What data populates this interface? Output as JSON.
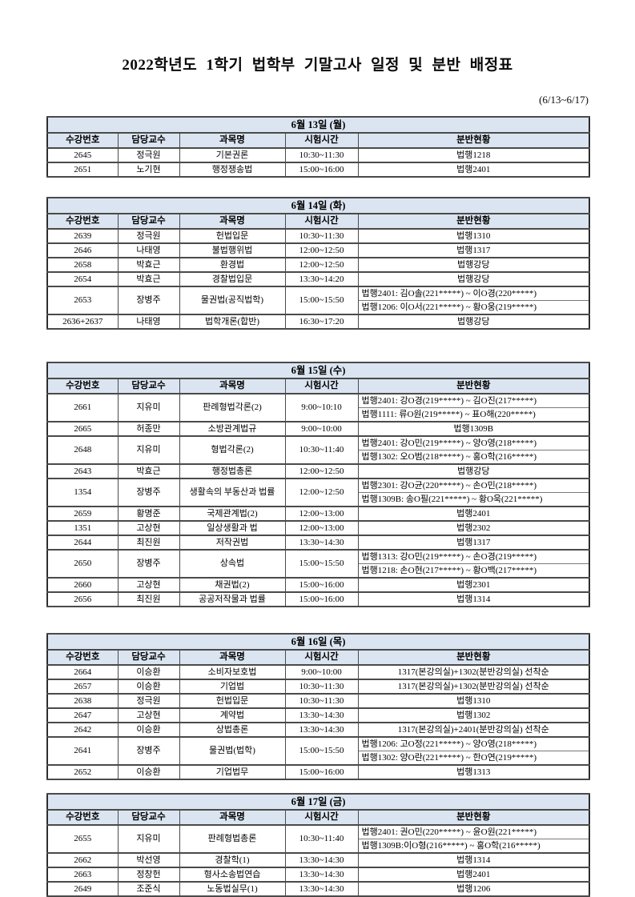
{
  "page": {
    "title": "2022학년도 1학기 법학부 기말고사 일정 및 분반 배정표",
    "date_range": "(6/13~6/17)"
  },
  "colors": {
    "header_bg": "#dbe5f1",
    "border": "#2e2e2e",
    "text": "#000000"
  },
  "columns": [
    "수강번호",
    "담당교수",
    "과목명",
    "시험시간",
    "분반현황"
  ],
  "tables": [
    {
      "day": "6월 13일 (월)",
      "rows": [
        {
          "no": "2645",
          "prof": "정극원",
          "subject": "기본권론",
          "time": "10:30~11:30",
          "sections": [
            "법행1218"
          ]
        },
        {
          "no": "2651",
          "prof": "노기현",
          "subject": "행정쟁송법",
          "time": "15:00~16:00",
          "sections": [
            "법행2401"
          ]
        }
      ]
    },
    {
      "day": "6월 14일 (화)",
      "rows": [
        {
          "no": "2639",
          "prof": "정극원",
          "subject": "헌법입문",
          "time": "10:30~11:30",
          "sections": [
            "법행1310"
          ]
        },
        {
          "no": "2646",
          "prof": "나태영",
          "subject": "불법행위법",
          "time": "12:00~12:50",
          "sections": [
            "법행1317"
          ]
        },
        {
          "no": "2658",
          "prof": "박효근",
          "subject": "환경법",
          "time": "12:00~12:50",
          "sections": [
            "법행강당"
          ]
        },
        {
          "no": "2654",
          "prof": "박효근",
          "subject": "경찰법입문",
          "time": "13:30~14:20",
          "sections": [
            "법행강당"
          ]
        },
        {
          "no": "2653",
          "prof": "장병주",
          "subject": "물권법(공직법학)",
          "time": "15:00~15:50",
          "sections": [
            "법행2401: 김O솔(221*****) ~ 이O경(220*****)",
            "법행1206: 이O서(221*****) ~ 황O웅(219*****)"
          ]
        },
        {
          "no": "2636+2637",
          "prof": "나태영",
          "subject": "법학개론(합반)",
          "time": "16:30~17:20",
          "sections": [
            "법행강당"
          ]
        }
      ]
    },
    {
      "day": "6월 15일 (수)",
      "rows": [
        {
          "no": "2661",
          "prof": "지유미",
          "subject": "판례형법각론(2)",
          "time": "9:00~10:10",
          "sections": [
            "법행2401: 강O경(219*****) ~ 김O진(217*****)",
            "법행1111: 류O원(219*****) ~ 표O해(220*****)"
          ]
        },
        {
          "no": "2665",
          "prof": "허종만",
          "subject": "소방관계법규",
          "time": "9:00~10:00",
          "sections": [
            "법행1309B"
          ]
        },
        {
          "no": "2648",
          "prof": "지유미",
          "subject": "형법각론(2)",
          "time": "10:30~11:40",
          "sections": [
            "법행2401: 강O민(219*****) ~ 양O영(218*****)",
            "법행1302: 오O범(218*****) ~ 홍O학(216*****)"
          ]
        },
        {
          "no": "2643",
          "prof": "박효근",
          "subject": "행정법총론",
          "time": "12:00~12:50",
          "sections": [
            "법행강당"
          ]
        },
        {
          "no": "1354",
          "prof": "장병주",
          "subject": "생활속의 부동산과 법률",
          "time": "12:00~12:50",
          "sections": [
            "법행2301: 강O균(220*****) ~ 손O민(218*****)",
            "법행1309B: 송O필(221*****) ~ 황O욱(221*****)"
          ]
        },
        {
          "no": "2659",
          "prof": "황명준",
          "subject": "국제관계법(2)",
          "time": "12:00~13:00",
          "sections": [
            "법행2401"
          ]
        },
        {
          "no": "1351",
          "prof": "고상현",
          "subject": "일상생활과 법",
          "time": "12:00~13:00",
          "sections": [
            "법행2302"
          ]
        },
        {
          "no": "2644",
          "prof": "최진원",
          "subject": "저작권법",
          "time": "13:30~14:30",
          "sections": [
            "법행1317"
          ]
        },
        {
          "no": "2650",
          "prof": "장병주",
          "subject": "상속법",
          "time": "15:00~15:50",
          "sections": [
            "법행1313: 강O민(219*****) ~ 손O경(219*****)",
            "법행1218: 손O현(217*****) ~ 황O백(217*****)"
          ]
        },
        {
          "no": "2660",
          "prof": "고상현",
          "subject": "채권법(2)",
          "time": "15:00~16:00",
          "sections": [
            "법행2301"
          ]
        },
        {
          "no": "2656",
          "prof": "최진원",
          "subject": "공공저작물과 법률",
          "time": "15:00~16:00",
          "sections": [
            "법행1314"
          ]
        }
      ]
    },
    {
      "day": "6월 16일 (목)",
      "rows": [
        {
          "no": "2664",
          "prof": "이승환",
          "subject": "소비자보호법",
          "time": "9:00~10:00",
          "sections": [
            "1317(본강의실)+1302(분반강의실) 선착순"
          ]
        },
        {
          "no": "2657",
          "prof": "이승환",
          "subject": "기업법",
          "time": "10:30~11:30",
          "sections": [
            "1317(본강의실)+1302(분반강의실) 선착순"
          ]
        },
        {
          "no": "2638",
          "prof": "정극원",
          "subject": "헌법입문",
          "time": "10:30~11:30",
          "sections": [
            "법행1310"
          ]
        },
        {
          "no": "2647",
          "prof": "고상현",
          "subject": "계약법",
          "time": "13:30~14:30",
          "sections": [
            "법행1302"
          ]
        },
        {
          "no": "2642",
          "prof": "이승환",
          "subject": "상법총론",
          "time": "13:30~14:30",
          "sections": [
            "1317(본강의실)+2401(분반강의실) 선착순"
          ]
        },
        {
          "no": "2641",
          "prof": "장병주",
          "subject": "물권법(법학)",
          "time": "15:00~15:50",
          "sections": [
            "법행1206: 고O정(221*****) ~ 양O영(218*****)",
            "법행1302: 양O란(221*****) ~ 한O연(219*****)"
          ]
        },
        {
          "no": "2652",
          "prof": "이승환",
          "subject": "기업법무",
          "time": "15:00~16:00",
          "sections": [
            "법행1313"
          ]
        }
      ]
    },
    {
      "day": "6월 17일 (금)",
      "rows": [
        {
          "no": "2655",
          "prof": "지유미",
          "subject": "판례형법총론",
          "time": "10:30~11:40",
          "sections": [
            "법행2401: 권O민(220*****) ~ 윤O원(221*****)",
            "법행1309B:이O형(216*****) ~ 홍O학(216*****)"
          ]
        },
        {
          "no": "2662",
          "prof": "박선영",
          "subject": "경찰학(1)",
          "time": "13:30~14:30",
          "sections": [
            "법행1314"
          ]
        },
        {
          "no": "2663",
          "prof": "정창헌",
          "subject": "형사소송법연습",
          "time": "13:30~14:30",
          "sections": [
            "법행2401"
          ]
        },
        {
          "no": "2649",
          "prof": "조준식",
          "subject": "노동법실무(1)",
          "time": "13:30~14:30",
          "sections": [
            "법행1206"
          ]
        }
      ]
    }
  ]
}
